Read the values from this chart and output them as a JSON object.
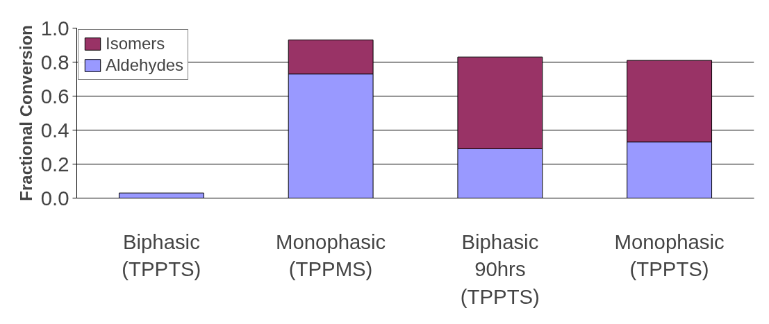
{
  "chart_data": {
    "type": "bar",
    "stacked": true,
    "ylabel": "Fractional Conversion",
    "categories": [
      "Biphasic\n(TPPTS)",
      "Monophasic\n(TPPMS)",
      "Biphasic\n90hrs\n(TPPTS)",
      "Monophasic\n(TPPTS)"
    ],
    "series": [
      {
        "name": "Aldehydes",
        "color": "#9999ff",
        "values": [
          0.03,
          0.73,
          0.29,
          0.33
        ]
      },
      {
        "name": "Isomers",
        "color": "#993366",
        "values": [
          null,
          0.2,
          0.54,
          0.48
        ]
      }
    ],
    "ylim": [
      0,
      1.0
    ],
    "yticks": [
      {
        "value": 0,
        "label": "0.0"
      },
      {
        "value": 0.2,
        "label": "0.2"
      },
      {
        "value": 0.4,
        "label": "0.4"
      },
      {
        "value": 0.6,
        "label": "0.6"
      },
      {
        "value": 0.8,
        "label": "0.8"
      },
      {
        "value": 1.0,
        "label": "1.0"
      }
    ],
    "grid": "y",
    "legend": "top left"
  }
}
